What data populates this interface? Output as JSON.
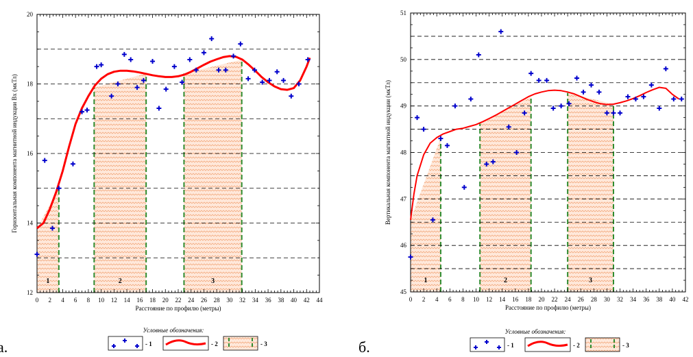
{
  "figure": {
    "panel_labels": [
      "а.",
      "б."
    ],
    "legend_title": "Условные обозначения:",
    "legend_items": [
      "- 1",
      "- 2",
      "- 3"
    ]
  },
  "colors": {
    "points": "#0000cc",
    "curve": "#ff0000",
    "zone_fill": "#ffd9c4",
    "zone_border": "#2e8b2e",
    "grid": "#000000"
  },
  "chart_data": [
    {
      "type": "scatter",
      "panel": "а",
      "xlabel": "Расстояние по профилю (метры)",
      "ylabel": "Горизонтальная компонента магнитной индукции Bх (мкТл)",
      "xlim": [
        0,
        44
      ],
      "ylim": [
        12,
        20
      ],
      "xticks": [
        0,
        2,
        4,
        6,
        8,
        10,
        12,
        14,
        16,
        18,
        20,
        22,
        24,
        26,
        28,
        30,
        32,
        34,
        36,
        38,
        40,
        42,
        44
      ],
      "yticks": [
        12,
        14,
        16,
        18,
        20
      ],
      "grid_dashed_y": [
        13,
        14,
        15,
        16,
        17,
        18,
        19
      ],
      "points": [
        [
          0,
          13.1
        ],
        [
          1.2,
          15.8
        ],
        [
          2.4,
          13.85
        ],
        [
          3.4,
          15.0
        ],
        [
          5.6,
          15.7
        ],
        [
          7.0,
          17.2
        ],
        [
          7.8,
          17.25
        ],
        [
          9.3,
          18.5
        ],
        [
          10.0,
          18.55
        ],
        [
          11.6,
          17.65
        ],
        [
          12.6,
          18.0
        ],
        [
          13.6,
          18.85
        ],
        [
          14.6,
          18.7
        ],
        [
          15.6,
          17.9
        ],
        [
          16.6,
          18.1
        ],
        [
          18.0,
          18.65
        ],
        [
          19.0,
          17.3
        ],
        [
          20.1,
          17.85
        ],
        [
          21.4,
          18.5
        ],
        [
          22.6,
          18.05
        ],
        [
          23.8,
          18.7
        ],
        [
          24.8,
          18.4
        ],
        [
          26.0,
          18.9
        ],
        [
          27.2,
          19.3
        ],
        [
          28.3,
          18.4
        ],
        [
          29.4,
          18.4
        ],
        [
          30.6,
          18.8
        ],
        [
          31.7,
          19.15
        ],
        [
          32.9,
          18.15
        ],
        [
          33.9,
          18.4
        ],
        [
          35.1,
          18.05
        ],
        [
          36.2,
          18.1
        ],
        [
          37.4,
          18.35
        ],
        [
          38.4,
          18.1
        ],
        [
          39.6,
          17.65
        ],
        [
          40.8,
          18.0
        ],
        [
          42.2,
          18.7
        ]
      ],
      "curve": [
        [
          0,
          13.85
        ],
        [
          1,
          14.0
        ],
        [
          2,
          14.4
        ],
        [
          3,
          14.9
        ],
        [
          4,
          15.5
        ],
        [
          5,
          16.2
        ],
        [
          6,
          16.85
        ],
        [
          7,
          17.3
        ],
        [
          8,
          17.65
        ],
        [
          9,
          17.95
        ],
        [
          10,
          18.15
        ],
        [
          11,
          18.28
        ],
        [
          12,
          18.35
        ],
        [
          13,
          18.38
        ],
        [
          14,
          18.38
        ],
        [
          15,
          18.36
        ],
        [
          16,
          18.33
        ],
        [
          17,
          18.29
        ],
        [
          18,
          18.25
        ],
        [
          19,
          18.22
        ],
        [
          20,
          18.2
        ],
        [
          21,
          18.2
        ],
        [
          22,
          18.22
        ],
        [
          23,
          18.27
        ],
        [
          24,
          18.35
        ],
        [
          25,
          18.45
        ],
        [
          26,
          18.55
        ],
        [
          27,
          18.64
        ],
        [
          28,
          18.71
        ],
        [
          29,
          18.77
        ],
        [
          30,
          18.8
        ],
        [
          31,
          18.78
        ],
        [
          32,
          18.7
        ],
        [
          33,
          18.55
        ],
        [
          34,
          18.38
        ],
        [
          35,
          18.2
        ],
        [
          36,
          18.05
        ],
        [
          37,
          17.93
        ],
        [
          38,
          17.85
        ],
        [
          39,
          17.83
        ],
        [
          40,
          17.88
        ],
        [
          41,
          18.1
        ],
        [
          42,
          18.5
        ],
        [
          42.5,
          18.75
        ]
      ],
      "zones": [
        {
          "label": "1",
          "x0": 0,
          "x1": 3.4,
          "top": [
            13.85,
            15.0
          ]
        },
        {
          "label": "2",
          "x0": 8.9,
          "x1": 17.0,
          "top": [
            17.9,
            18.3
          ]
        },
        {
          "label": "3",
          "x0": 22.9,
          "x1": 31.9,
          "top": [
            18.3,
            18.7
          ]
        }
      ]
    },
    {
      "type": "scatter",
      "panel": "б",
      "xlabel": "Расстояние по профилю (метры)",
      "ylabel": "Вертикальная компонента магнитной индукции (мкТл)",
      "xlim": [
        0,
        42
      ],
      "ylim": [
        45,
        51
      ],
      "xticks": [
        0,
        2,
        4,
        6,
        8,
        10,
        12,
        14,
        16,
        18,
        20,
        22,
        24,
        26,
        28,
        30,
        32,
        34,
        36,
        38,
        40,
        42
      ],
      "yticks": [
        45,
        46,
        47,
        48,
        49,
        50,
        51
      ],
      "grid_dashed_y": [
        45.5,
        46,
        46.5,
        47,
        47.5,
        48,
        48.5,
        49,
        49.5,
        50,
        50.5
      ],
      "points": [
        [
          0,
          45.75
        ],
        [
          1.0,
          48.75
        ],
        [
          2.0,
          48.5
        ],
        [
          3.4,
          46.55
        ],
        [
          4.6,
          48.3
        ],
        [
          5.6,
          48.15
        ],
        [
          6.8,
          49.0
        ],
        [
          8.2,
          47.25
        ],
        [
          9.2,
          49.15
        ],
        [
          10.4,
          50.1
        ],
        [
          11.6,
          47.75
        ],
        [
          12.6,
          47.8
        ],
        [
          13.8,
          50.6
        ],
        [
          15.0,
          48.55
        ],
        [
          16.2,
          48.0
        ],
        [
          17.4,
          48.85
        ],
        [
          18.4,
          49.7
        ],
        [
          19.6,
          49.55
        ],
        [
          20.8,
          49.55
        ],
        [
          21.8,
          48.95
        ],
        [
          23.0,
          49.0
        ],
        [
          24.2,
          49.05
        ],
        [
          25.4,
          49.6
        ],
        [
          26.4,
          49.3
        ],
        [
          27.6,
          49.45
        ],
        [
          28.8,
          49.3
        ],
        [
          30.0,
          48.85
        ],
        [
          31.0,
          48.85
        ],
        [
          32.0,
          48.85
        ],
        [
          33.2,
          49.2
        ],
        [
          34.4,
          49.15
        ],
        [
          35.6,
          49.2
        ],
        [
          36.8,
          49.45
        ],
        [
          38.0,
          48.95
        ],
        [
          39.0,
          49.8
        ],
        [
          40.2,
          49.15
        ],
        [
          41.4,
          49.15
        ]
      ],
      "curve": [
        [
          0,
          46.55
        ],
        [
          0.5,
          47.1
        ],
        [
          1,
          47.5
        ],
        [
          2,
          47.95
        ],
        [
          3,
          48.2
        ],
        [
          4,
          48.32
        ],
        [
          5,
          48.4
        ],
        [
          6,
          48.45
        ],
        [
          7,
          48.5
        ],
        [
          8,
          48.52
        ],
        [
          9,
          48.56
        ],
        [
          10,
          48.6
        ],
        [
          11,
          48.66
        ],
        [
          12,
          48.73
        ],
        [
          13,
          48.8
        ],
        [
          14,
          48.88
        ],
        [
          15,
          48.96
        ],
        [
          16,
          49.04
        ],
        [
          17,
          49.12
        ],
        [
          18,
          49.2
        ],
        [
          19,
          49.26
        ],
        [
          20,
          49.3
        ],
        [
          21,
          49.33
        ],
        [
          22,
          49.34
        ],
        [
          23,
          49.33
        ],
        [
          24,
          49.3
        ],
        [
          25,
          49.26
        ],
        [
          26,
          49.2
        ],
        [
          27,
          49.14
        ],
        [
          28,
          49.09
        ],
        [
          29,
          49.05
        ],
        [
          30,
          49.03
        ],
        [
          31,
          49.04
        ],
        [
          32,
          49.07
        ],
        [
          33,
          49.11
        ],
        [
          34,
          49.16
        ],
        [
          35,
          49.22
        ],
        [
          36,
          49.29
        ],
        [
          37,
          49.35
        ],
        [
          38,
          49.4
        ],
        [
          39,
          49.38
        ],
        [
          40,
          49.25
        ],
        [
          41,
          49.15
        ]
      ],
      "zones": [
        {
          "label": "1",
          "x0": 0,
          "x1": 4.6,
          "top": [
            46.55,
            48.32
          ]
        },
        {
          "label": "2",
          "x0": 10.6,
          "x1": 18.4,
          "top": [
            48.62,
            49.2
          ]
        },
        {
          "label": "3",
          "x0": 24.0,
          "x1": 31.0,
          "top": [
            49.28,
            49.04
          ]
        }
      ]
    }
  ]
}
